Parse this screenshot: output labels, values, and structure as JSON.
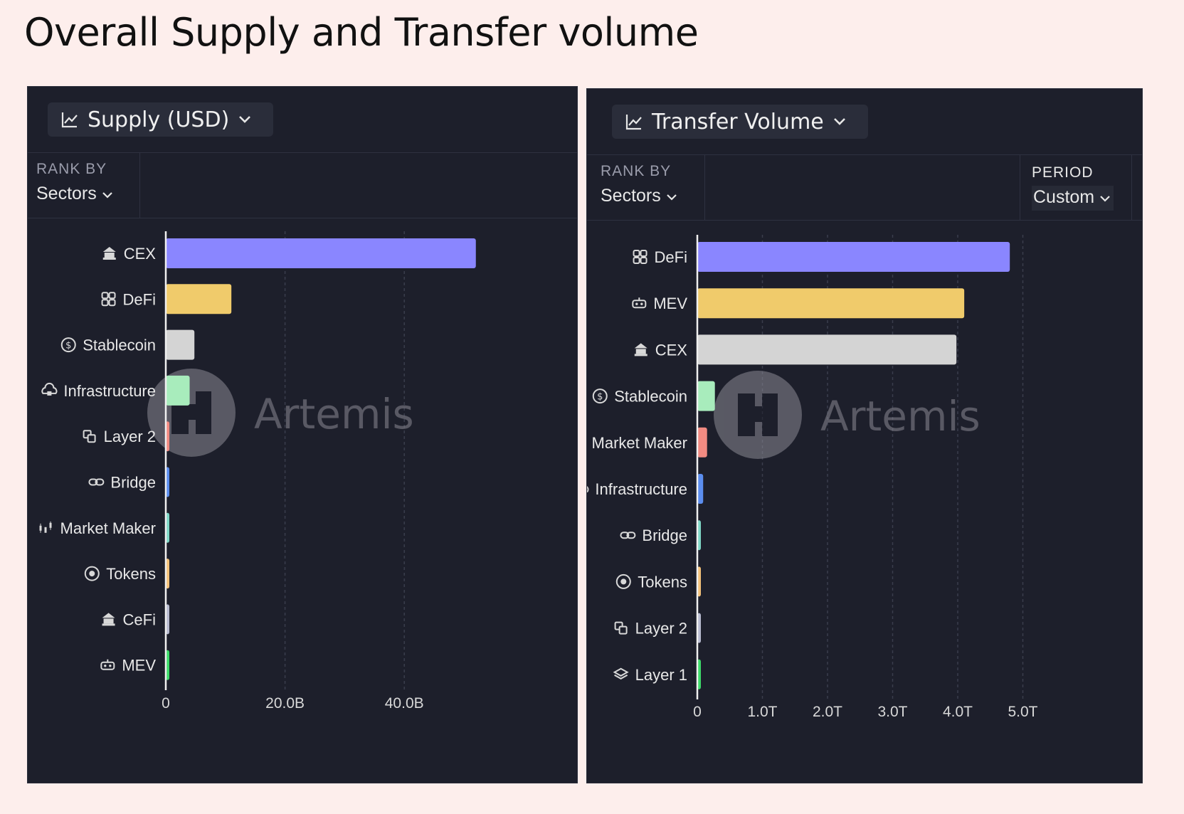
{
  "page_title": "Overall Supply and Transfer volume",
  "panels": [
    {
      "metric_label": "Supply (USD)",
      "rank_by_label": "RANK BY",
      "rank_by_value": "Sectors",
      "watermark": "Artemis"
    },
    {
      "metric_label": "Transfer Volume",
      "rank_by_label": "RANK BY",
      "rank_by_value": "Sectors",
      "period_label": "PERIOD",
      "period_value": "Custom",
      "watermark": "Artemis"
    }
  ],
  "chart_data": [
    {
      "type": "bar",
      "orientation": "horizontal",
      "categories": [
        "CEX",
        "DeFi",
        "Stablecoin",
        "Infrastructure",
        "Layer 2",
        "Bridge",
        "Market Maker",
        "Tokens",
        "CeFi",
        "MEV"
      ],
      "icons": [
        "bank-icon",
        "defi-grid-icon",
        "dollar-coin-icon",
        "cloud-lock-icon",
        "layers-icon",
        "link-icon",
        "market-maker-icon",
        "target-icon",
        "bank-icon",
        "robot-icon"
      ],
      "values": [
        52,
        11,
        4.8,
        4,
        0.6,
        0.5,
        0.4,
        0.4,
        0.3,
        0.3
      ],
      "unit": "B USD",
      "colors": [
        "#8a86ff",
        "#f0cb6b",
        "#d4d4d4",
        "#a8ecbc",
        "#f28b82",
        "#5b8def",
        "#7fd8c7",
        "#f5c27a",
        "#b8bbd0",
        "#3ddc6a"
      ],
      "xticks": [
        0,
        20,
        40
      ],
      "xtick_labels": [
        "0",
        "20.0B",
        "40.0B"
      ],
      "xlim": [
        0,
        62
      ]
    },
    {
      "type": "bar",
      "orientation": "horizontal",
      "categories": [
        "DeFi",
        "MEV",
        "CEX",
        "Stablecoin",
        "Market Maker",
        "Infrastructure",
        "Bridge",
        "Tokens",
        "Layer 2",
        "Layer 1"
      ],
      "icons": [
        "defi-grid-icon",
        "robot-icon",
        "bank-icon",
        "dollar-coin-icon",
        "market-maker-icon",
        "cloud-lock-icon",
        "link-icon",
        "target-icon",
        "layers-icon",
        "cube-icon"
      ],
      "values": [
        4.8,
        4.1,
        3.98,
        0.27,
        0.15,
        0.09,
        0.05,
        0.05,
        0.05,
        0.05
      ],
      "unit": "T USD",
      "colors": [
        "#8a86ff",
        "#f0cb6b",
        "#d4d4d4",
        "#a8ecbc",
        "#f28b82",
        "#5b8def",
        "#7fd8c7",
        "#f5c27a",
        "#b8bbd0",
        "#3ddc6a"
      ],
      "xticks": [
        0,
        1,
        2,
        3,
        4,
        5
      ],
      "xtick_labels": [
        "0",
        "1.0T",
        "2.0T",
        "3.0T",
        "4.0T",
        "5.0T"
      ],
      "xlim": [
        0,
        5.6
      ]
    }
  ]
}
